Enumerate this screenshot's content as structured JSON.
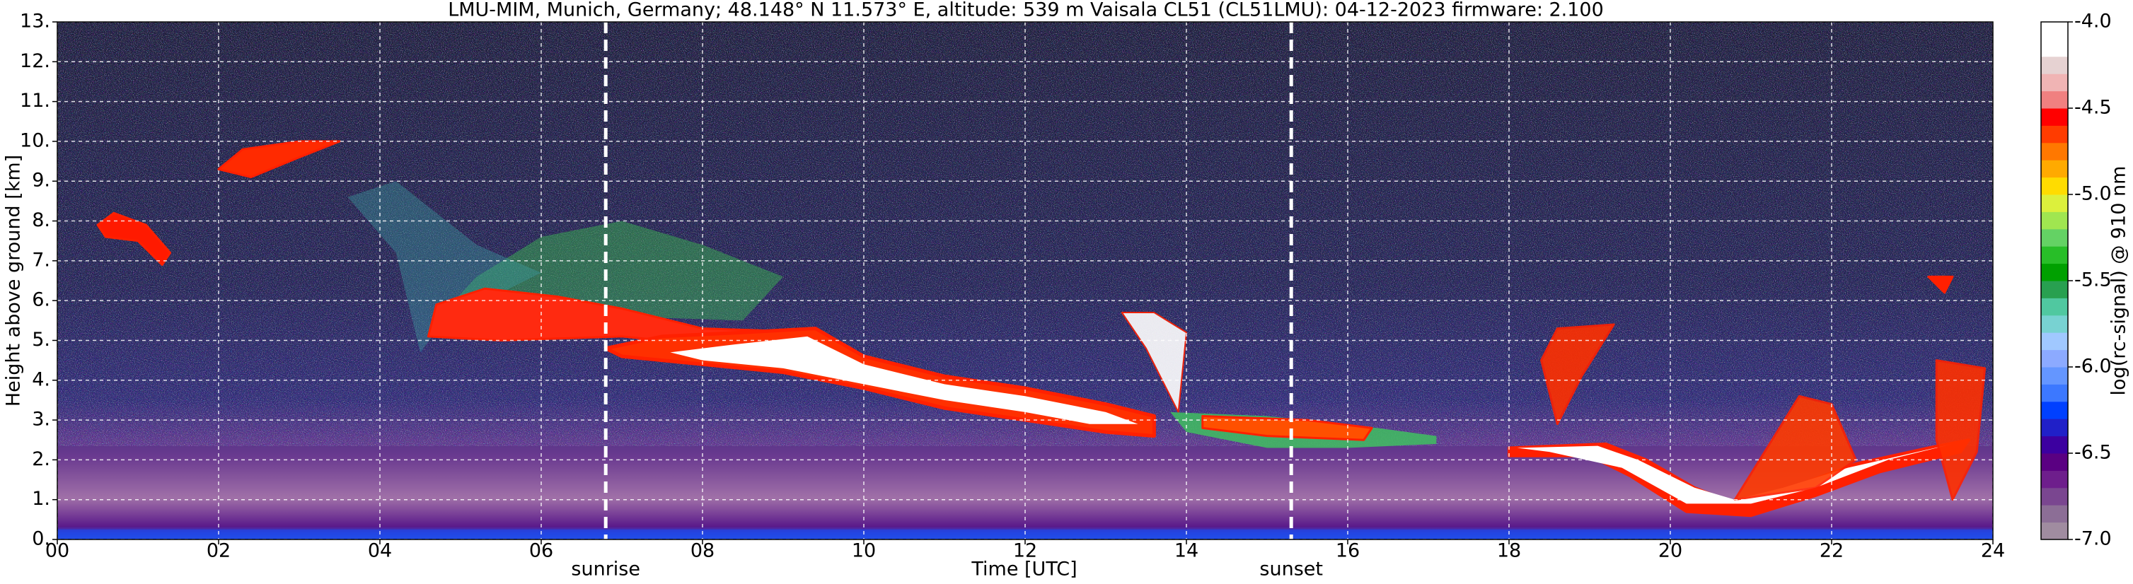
{
  "chart_data": {
    "type": "heatmap",
    "title": "LMU-MIM, Munich, Germany; 48.148° N 11.573° E, altitude: 539 m    Vaisala CL51 (CL51LMU): 04-12-2023    firmware: 2.100",
    "x_label": "Time [UTC]",
    "y_label": "Height above ground [km]",
    "colorbar_label": "log(rc-signal) @ 910 nm",
    "xlim": [
      0,
      24
    ],
    "xticks": [
      {
        "value": 0,
        "label": "00"
      },
      {
        "value": 2,
        "label": "02"
      },
      {
        "value": 4,
        "label": "04"
      },
      {
        "value": 6,
        "label": "06"
      },
      {
        "value": 8,
        "label": "08"
      },
      {
        "value": 10,
        "label": "10"
      },
      {
        "value": 12,
        "label": "12"
      },
      {
        "value": 14,
        "label": "14"
      },
      {
        "value": 16,
        "label": "16"
      },
      {
        "value": 18,
        "label": "18"
      },
      {
        "value": 20,
        "label": "20"
      },
      {
        "value": 22,
        "label": "22"
      },
      {
        "value": 24,
        "label": "24"
      }
    ],
    "ylim": [
      0,
      13
    ],
    "yticks": [
      {
        "value": 0,
        "label": "0."
      },
      {
        "value": 1,
        "label": "1."
      },
      {
        "value": 2,
        "label": "2."
      },
      {
        "value": 3,
        "label": "3."
      },
      {
        "value": 4,
        "label": "4."
      },
      {
        "value": 5,
        "label": "5."
      },
      {
        "value": 6,
        "label": "6."
      },
      {
        "value": 7,
        "label": "7."
      },
      {
        "value": 8,
        "label": "8."
      },
      {
        "value": 9,
        "label": "9."
      },
      {
        "value": 10,
        "label": "10."
      },
      {
        "value": 11,
        "label": "11."
      },
      {
        "value": 12,
        "label": "12."
      },
      {
        "value": 13,
        "label": "13."
      }
    ],
    "clim": [
      -7,
      -4
    ],
    "cticks": [
      {
        "value": -4,
        "label": "-4.0"
      },
      -4.5,
      {
        "value": -5,
        "label": "-5.0"
      },
      -5.5,
      {
        "value": -6,
        "label": "-6.0"
      },
      -6.5,
      {
        "value": -7,
        "label": "-7.0"
      }
    ],
    "colormap": [
      "#a08ca0",
      "#8c6e96",
      "#7a4690",
      "#6e1e8c",
      "#5a0082",
      "#3c00a0",
      "#2020c8",
      "#0040ff",
      "#3c78ff",
      "#6496ff",
      "#8caaff",
      "#a0c8ff",
      "#78d2d2",
      "#50c8a0",
      "#28a050",
      "#00a000",
      "#28be28",
      "#64d264",
      "#a0e650",
      "#dcf03c",
      "#ffdc00",
      "#ffaa00",
      "#ff7800",
      "#ff3c00",
      "#ff0000",
      "#f08080",
      "#f0b4b4",
      "#e6d2d2",
      "#ffffff",
      "#ffffff"
    ],
    "grid": true,
    "annotations": [
      {
        "label": "sunrise",
        "x": 6.8
      },
      {
        "label": "sunset",
        "x": 15.3
      }
    ]
  }
}
